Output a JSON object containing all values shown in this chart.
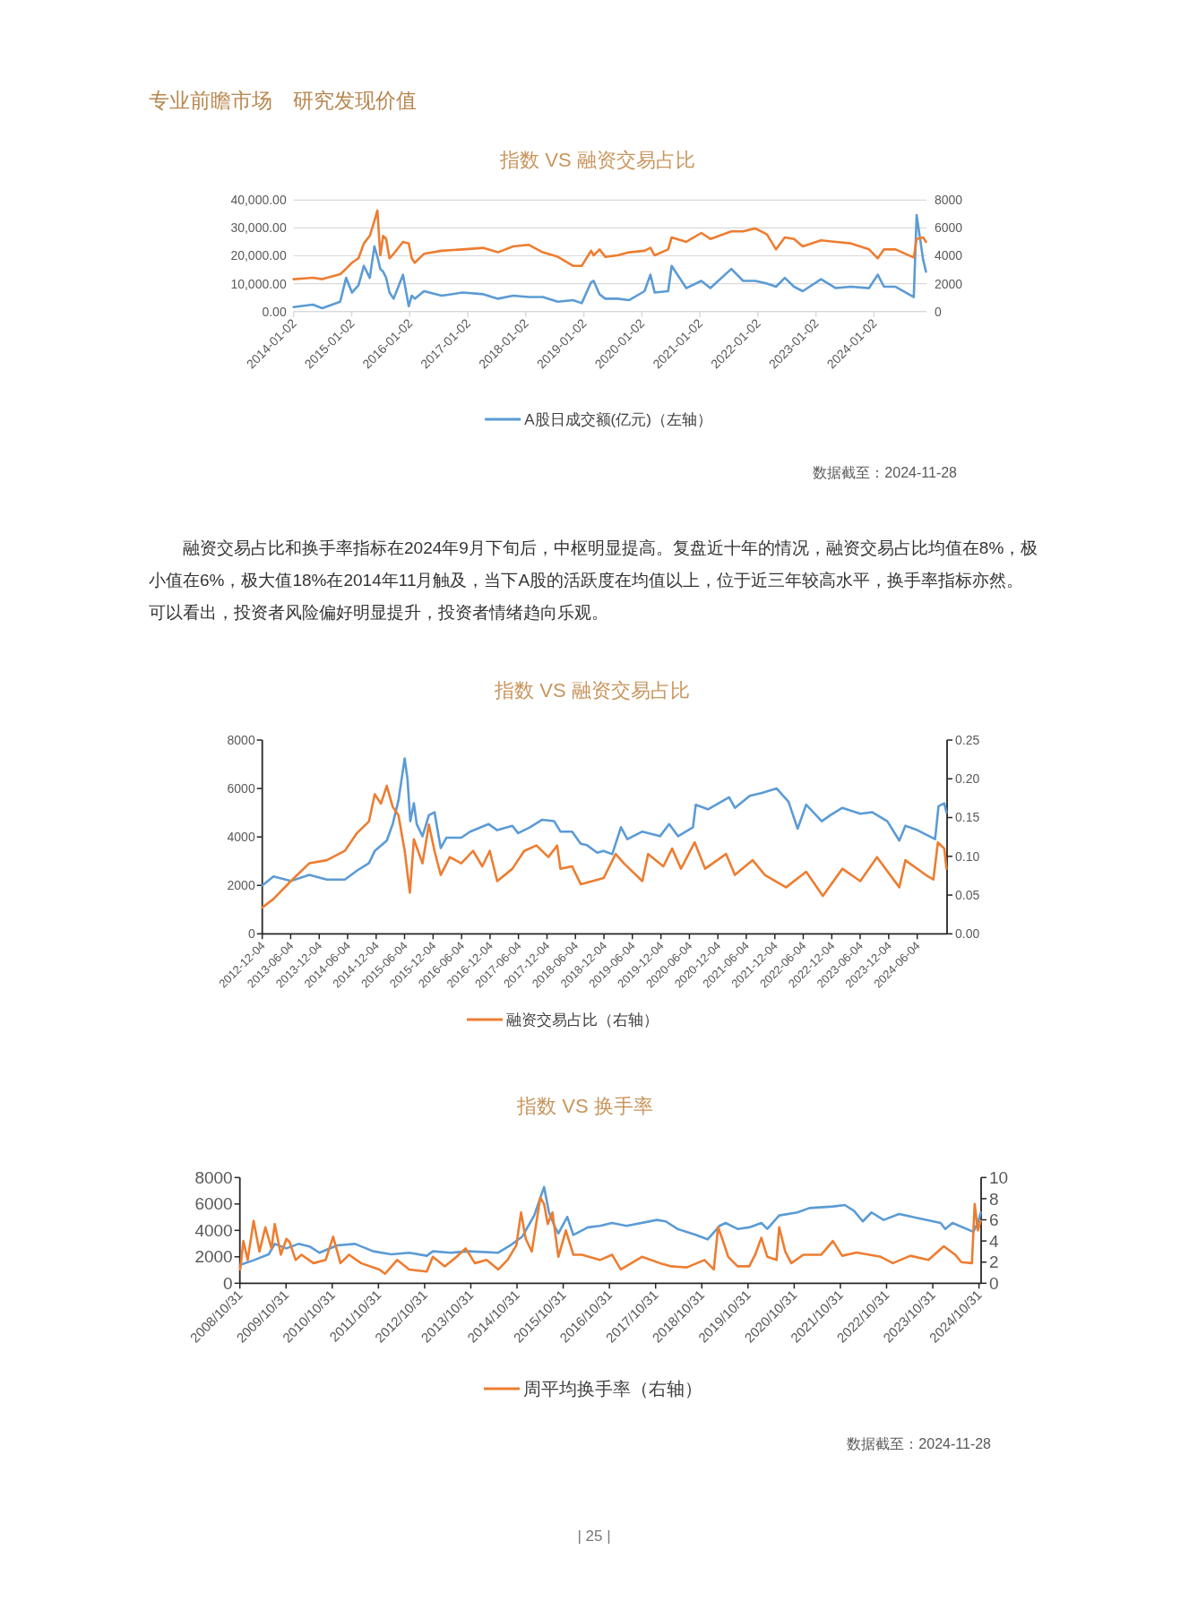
{
  "chart_data": [
    {
      "type": "line",
      "title": "指数 VS 融资交易占比",
      "annotations": [
        "专业前瞻市场　研究发现价值",
        "数据截至：2024-11-28"
      ],
      "x": [
        "2014-01-02",
        "2014-05-03",
        "2014-07-01",
        "2014-10-22",
        "2014-11-28",
        "2015-01-04",
        "2015-02-14",
        "2015-03-20",
        "2015-04-26",
        "2015-05-25",
        "2015-06-13",
        "2015-07-01",
        "2015-07-19",
        "2015-08-07",
        "2015-08-28",
        "2015-09-23",
        "2015-11-21",
        "2015-12-27",
        "2016-01-15",
        "2016-02-03",
        "2016-04-01",
        "2016-07-22",
        "2016-12-02",
        "2017-04-11",
        "2017-07-11",
        "2017-10-15",
        "2018-01-19",
        "2018-04-19",
        "2018-07-22",
        "2018-10-26",
        "2018-12-20",
        "2019-02-17",
        "2019-03-05",
        "2019-04-11",
        "2019-05-17",
        "2019-08-03",
        "2019-10-15",
        "2020-01-19",
        "2020-02-25",
        "2020-03-23",
        "2020-06-16",
        "2020-07-08",
        "2020-10-08",
        "2021-01-11",
        "2021-03-09",
        "2021-07-19",
        "2021-10-01",
        "2021-12-16",
        "2022-02-28",
        "2022-04-26",
        "2022-06-20",
        "2022-08-17",
        "2022-10-11",
        "2023-02-03",
        "2023-05-07",
        "2023-08-10",
        "2023-12-02",
        "2024-01-26",
        "2024-03-05",
        "2024-05-17",
        "2024-09-09",
        "2024-09-27",
        "2024-11-07",
        "2024-11-25"
      ],
      "series": [
        {
          "name": "A股日成交额(亿元)（左轴）",
          "color": "#5b9bd5",
          "values": [
            1600,
            2500,
            1200,
            3500,
            12100,
            6800,
            9400,
            16400,
            12100,
            23400,
            19600,
            15300,
            14300,
            12100,
            6800,
            4600,
            13200,
            1900,
            5700,
            4600,
            7300,
            5700,
            6800,
            6200,
            4600,
            5700,
            5200,
            5200,
            3500,
            4100,
            3000,
            10500,
            11000,
            6200,
            4600,
            4600,
            4100,
            7300,
            13200,
            6800,
            7300,
            16400,
            8400,
            11000,
            8400,
            15300,
            11000,
            11000,
            10000,
            8900,
            12100,
            8900,
            7300,
            11600,
            8400,
            8900,
            8400,
            13200,
            8900,
            8900,
            5200,
            34600,
            18600,
            14300
          ]
        },
        {
          "color": "#ed7d31",
          "axis": "y2",
          "values": [
            2320,
            2420,
            2320,
            2680,
            3070,
            3500,
            3820,
            4890,
            5430,
            6500,
            7250,
            4030,
            5430,
            5210,
            3820,
            4140,
            5000,
            4890,
            3820,
            3500,
            4140,
            4360,
            4460,
            4570,
            4250,
            4680,
            4790,
            4250,
            3930,
            3280,
            3280,
            4360,
            4030,
            4460,
            3930,
            4030,
            4250,
            4360,
            4570,
            4030,
            4460,
            5320,
            5000,
            5640,
            5210,
            5750,
            5750,
            5970,
            5540,
            4460,
            5320,
            5210,
            4680,
            5110,
            5000,
            4890,
            4460,
            3820,
            4460,
            4460,
            3880,
            5210,
            5320,
            5000
          ]
        }
      ],
      "xlim": [
        "2014-01-02",
        "2024-11-28"
      ],
      "xticks": [
        {
          "value": "2014-01-02",
          "label": "2014-01-02"
        },
        {
          "value": "2015-01-02",
          "label": "2015-01-02"
        },
        {
          "value": "2016-01-02",
          "label": "2016-01-02"
        },
        {
          "value": "2017-01-02",
          "label": "2017-01-02"
        },
        {
          "value": "2018-01-02",
          "label": "2018-01-02"
        },
        {
          "value": "2019-01-02",
          "label": "2019-01-02"
        },
        {
          "value": "2020-01-02",
          "label": "2020-01-02"
        },
        {
          "value": "2021-01-02",
          "label": "2021-01-02"
        },
        {
          "value": "2022-01-02",
          "label": "2022-01-02"
        },
        {
          "value": "2023-01-02",
          "label": "2023-01-02"
        },
        {
          "value": "2024-01-02",
          "label": "2024-01-02"
        }
      ],
      "ylim": [
        0,
        40000
      ],
      "yticks": [
        {
          "value": 0,
          "label": "0.00"
        },
        {
          "value": 10000,
          "label": "10,000.00"
        },
        {
          "value": 20000,
          "label": "20,000.00"
        },
        {
          "value": 30000,
          "label": "30,000.00"
        },
        {
          "value": 40000,
          "label": "40,000.00"
        }
      ],
      "y2lim": [
        0,
        8000
      ],
      "y2ticks": [
        0,
        2000,
        4000,
        6000,
        8000
      ],
      "grid": "y",
      "legend": "bottom"
    },
    {
      "type": "line",
      "title": "指数 VS 融资交易占比",
      "annotations": [
        "融资交易占比和换手率指标在2024年9月下旬后，中枢明显提高。复盘近十年的情况，融资交易占比均值在8%，极小值在6%，极大值18%在2014年11月触及，当下A股的活跃度在均值以上，位于近三年较高水平，换手率指标亦然。可以看出，投资者风险偏好明显提升，投资者情绪趋向乐观。"
      ],
      "series": [
        {
          "color": "#5b9bd5",
          "x": [
            "2012-12-05",
            "2013-02-14",
            "2013-06-05",
            "2013-10-01",
            "2014-01-22",
            "2014-05-17",
            "2014-08-03",
            "2014-10-19",
            "2014-11-25",
            "2015-02-10",
            "2015-03-20",
            "2015-04-26",
            "2015-06-05",
            "2015-06-23",
            "2015-07-11",
            "2015-08-03",
            "2015-08-21",
            "2015-09-27",
            "2015-11-07",
            "2015-12-13",
            "2016-01-22",
            "2016-02-28",
            "2016-06-02",
            "2016-07-29",
            "2016-11-25",
            "2017-01-19",
            "2017-04-26",
            "2017-06-02",
            "2017-08-17",
            "2017-11-03",
            "2018-01-19",
            "2018-02-28",
            "2018-05-14",
            "2018-07-08",
            "2018-08-17",
            "2018-10-22",
            "2018-12-02",
            "2019-01-26",
            "2019-03-23",
            "2019-05-03",
            "2019-08-07",
            "2019-11-28",
            "2020-01-26",
            "2020-03-23",
            "2020-06-27",
            "2020-07-15",
            "2020-10-01",
            "2021-02-14",
            "2021-03-23",
            "2021-06-27",
            "2021-09-13",
            "2021-12-16",
            "2022-03-02",
            "2022-04-29",
            "2022-06-23",
            "2022-10-01",
            "2022-11-25",
            "2023-02-10",
            "2023-06-05",
            "2023-08-21",
            "2023-11-25",
            "2024-02-10",
            "2024-03-20",
            "2024-06-05",
            "2024-09-27",
            "2024-10-19",
            "2024-11-25",
            "2024-12-09"
          ],
          "values": [
            2000,
            2370,
            2180,
            2430,
            2240,
            2240,
            2610,
            2920,
            3420,
            3850,
            4530,
            5510,
            7240,
            6380,
            4650,
            5390,
            4530,
            4030,
            4900,
            5020,
            3540,
            3970,
            3970,
            4220,
            4530,
            4280,
            4460,
            4160,
            4400,
            4710,
            4650,
            4220,
            4220,
            3720,
            3660,
            3350,
            3420,
            3290,
            4400,
            3910,
            4220,
            4030,
            4530,
            4030,
            4400,
            5330,
            5140,
            5640,
            5200,
            5700,
            5820,
            6000,
            5450,
            4340,
            5330,
            4650,
            4900,
            5200,
            4960,
            5020,
            4650,
            3850,
            4460,
            4280,
            3910,
            5270,
            5390,
            5020
          ]
        },
        {
          "name": "融资交易占比（右轴）",
          "color": "#ed7d31",
          "axis": "y2",
          "x": [
            "2012-12-05",
            "2013-02-14",
            "2013-06-05",
            "2013-10-01",
            "2014-01-22",
            "2014-05-17",
            "2014-08-03",
            "2014-10-19",
            "2014-11-25",
            "2015-01-04",
            "2015-02-10",
            "2015-03-20",
            "2015-04-26",
            "2015-06-05",
            "2015-07-08",
            "2015-08-03",
            "2015-09-27",
            "2015-11-07",
            "2015-12-13",
            "2016-01-22",
            "2016-03-20",
            "2016-06-02",
            "2016-08-17",
            "2016-10-15",
            "2016-12-02",
            "2017-01-19",
            "2017-04-26",
            "2017-07-11",
            "2017-09-27",
            "2017-12-13",
            "2018-02-07",
            "2018-02-28",
            "2018-05-14",
            "2018-07-08",
            "2018-12-02",
            "2019-02-17",
            "2019-04-11",
            "2019-08-07",
            "2019-09-13",
            "2019-12-20",
            "2020-02-14",
            "2020-04-11",
            "2020-07-08",
            "2020-09-13",
            "2021-01-26",
            "2021-03-23",
            "2021-07-15",
            "2021-10-01",
            "2022-02-14",
            "2022-06-23",
            "2022-10-08",
            "2023-02-10",
            "2023-06-05",
            "2023-09-20",
            "2024-02-10",
            "2024-03-20",
            "2024-07-29",
            "2024-09-16",
            "2024-10-15",
            "2024-11-25",
            "2024-12-09"
          ],
          "values": [
            0.034,
            0.045,
            0.068,
            0.091,
            0.095,
            0.107,
            0.13,
            0.145,
            0.18,
            0.168,
            0.191,
            0.164,
            0.153,
            0.107,
            0.053,
            0.122,
            0.091,
            0.141,
            0.107,
            0.076,
            0.099,
            0.091,
            0.107,
            0.087,
            0.107,
            0.068,
            0.084,
            0.107,
            0.114,
            0.099,
            0.114,
            0.084,
            0.087,
            0.064,
            0.072,
            0.103,
            0.091,
            0.068,
            0.103,
            0.087,
            0.11,
            0.084,
            0.118,
            0.084,
            0.103,
            0.076,
            0.095,
            0.076,
            0.06,
            0.08,
            0.049,
            0.084,
            0.068,
            0.099,
            0.06,
            0.095,
            0.076,
            0.07,
            0.118,
            0.11,
            0.084
          ]
        }
      ],
      "xlim": [
        "2012-12-04",
        "2024-12-13"
      ],
      "xticks": [
        {
          "value": "2012-12-04",
          "label": "2012-12-04"
        },
        {
          "value": "2013-06-04",
          "label": "2013-06-04"
        },
        {
          "value": "2013-12-04",
          "label": "2013-12-04"
        },
        {
          "value": "2014-06-04",
          "label": "2014-06-04"
        },
        {
          "value": "2014-12-04",
          "label": "2014-12-04"
        },
        {
          "value": "2015-06-04",
          "label": "2015-06-04"
        },
        {
          "value": "2015-12-04",
          "label": "2015-12-04"
        },
        {
          "value": "2016-06-04",
          "label": "2016-06-04"
        },
        {
          "value": "2016-12-04",
          "label": "2016-12-04"
        },
        {
          "value": "2017-06-04",
          "label": "2017-06-04"
        },
        {
          "value": "2017-12-04",
          "label": "2017-12-04"
        },
        {
          "value": "2018-06-04",
          "label": "2018-06-04"
        },
        {
          "value": "2018-12-04",
          "label": "2018-12-04"
        },
        {
          "value": "2019-06-04",
          "label": "2019-06-04"
        },
        {
          "value": "2019-12-04",
          "label": "2019-12-04"
        },
        {
          "value": "2020-06-04",
          "label": "2020-06-04"
        },
        {
          "value": "2020-12-04",
          "label": "2020-12-04"
        },
        {
          "value": "2021-06-04",
          "label": "2021-06-04"
        },
        {
          "value": "2021-12-04",
          "label": "2021-12-04"
        },
        {
          "value": "2022-06-04",
          "label": "2022-06-04"
        },
        {
          "value": "2022-12-04",
          "label": "2022-12-04"
        },
        {
          "value": "2023-06-04",
          "label": "2023-06-04"
        },
        {
          "value": "2023-12-04",
          "label": "2023-12-04"
        },
        {
          "value": "2024-06-04",
          "label": "2024-06-04"
        }
      ],
      "ylim": [
        0,
        8000
      ],
      "yticks": [
        0,
        2000,
        4000,
        6000,
        8000
      ],
      "y2lim": [
        0,
        0.25
      ],
      "y2ticks": [
        {
          "value": 0,
          "label": "0.00"
        },
        {
          "value": 0.05,
          "label": "0.05"
        },
        {
          "value": 0.1,
          "label": "0.10"
        },
        {
          "value": 0.15,
          "label": "0.15"
        },
        {
          "value": 0.2,
          "label": "0.20"
        },
        {
          "value": 0.25,
          "label": "0.25"
        }
      ],
      "legend": "bottom"
    },
    {
      "type": "line",
      "title": "指数 VS 换手率",
      "annotations": [
        "数据截至：2024-11-28",
        "|  25  |"
      ],
      "series": [
        {
          "color": "#5b9bd5",
          "x": [
            "2008-11-03",
            "2009-02-17",
            "2009-06-16",
            "2009-08-03",
            "2009-11-03",
            "2010-02-07",
            "2010-05-10",
            "2010-07-22",
            "2010-12-09",
            "2011-04-29",
            "2011-09-20",
            "2012-02-10",
            "2012-07-01",
            "2012-11-17",
            "2013-01-04",
            "2013-05-25",
            "2013-10-15",
            "2014-06-05",
            "2014-09-09",
            "2014-12-13",
            "2015-03-16",
            "2015-06-02",
            "2015-07-11",
            "2015-08-28",
            "2015-09-23",
            "2015-12-02",
            "2016-01-19",
            "2016-05-14",
            "2016-08-17",
            "2016-11-21",
            "2017-03-16",
            "2017-11-10",
            "2018-01-19",
            "2018-04-22",
            "2018-09-13",
            "2018-12-16",
            "2019-03-20",
            "2019-05-07",
            "2019-08-10",
            "2019-11-10",
            "2020-02-14",
            "2020-04-01",
            "2020-07-04",
            "2020-11-25",
            "2021-02-28",
            "2021-09-02",
            "2021-12-05",
            "2022-02-17",
            "2022-04-26",
            "2022-07-04",
            "2022-10-08",
            "2023-02-07",
            "2023-07-19",
            "2024-01-01",
            "2024-02-07",
            "2024-04-04",
            "2024-09-16",
            "2024-10-22",
            "2024-11-14"
          ],
          "values": [
            1400,
            1740,
            2190,
            2980,
            2640,
            2980,
            2760,
            2310,
            2870,
            2980,
            2420,
            2190,
            2310,
            2080,
            2420,
            2310,
            2420,
            2310,
            2870,
            3550,
            5130,
            7280,
            5360,
            4230,
            3770,
            5020,
            3660,
            4230,
            4340,
            4560,
            4340,
            4790,
            4680,
            4110,
            3660,
            3320,
            4340,
            4560,
            4110,
            4230,
            4560,
            4110,
            5130,
            5360,
            5690,
            5810,
            5920,
            5470,
            4680,
            5360,
            4790,
            5240,
            4900,
            4560,
            4110,
            4560,
            3890,
            4560,
            5360
          ]
        },
        {
          "name": "周平均换手率（右轴）",
          "color": "#ed7d31",
          "axis": "y2",
          "x": [
            "2008-11-03",
            "2008-11-28",
            "2009-01-01",
            "2009-02-17",
            "2009-04-04",
            "2009-05-21",
            "2009-07-08",
            "2009-08-03",
            "2009-09-20",
            "2009-11-03",
            "2009-11-28",
            "2010-01-15",
            "2010-03-02",
            "2010-06-05",
            "2010-09-09",
            "2010-11-07",
            "2011-01-04",
            "2011-03-13",
            "2011-06-16",
            "2011-11-07",
            "2011-12-23",
            "2012-03-27",
            "2012-07-01",
            "2012-11-17",
            "2013-01-04",
            "2013-04-08",
            "2013-07-11",
            "2013-09-20",
            "2013-12-02",
            "2014-03-05",
            "2014-06-05",
            "2014-08-17",
            "2014-10-26",
            "2014-12-02",
            "2015-01-08",
            "2015-02-25",
            "2015-05-03",
            "2015-06-02",
            "2015-07-01",
            "2015-08-07",
            "2015-09-23",
            "2015-11-21",
            "2016-01-19",
            "2016-03-27",
            "2016-08-17",
            "2016-11-21",
            "2017-01-29",
            "2017-07-15",
            "2017-12-05",
            "2018-03-05",
            "2018-07-04",
            "2018-11-21",
            "2019-02-03",
            "2019-03-09",
            "2019-04-11",
            "2019-05-28",
            "2019-08-10",
            "2019-11-10",
            "2019-12-27",
            "2020-02-14",
            "2020-04-01",
            "2020-06-13",
            "2020-07-04",
            "2020-08-21",
            "2020-10-08",
            "2021-01-11",
            "2021-06-02",
            "2021-09-02",
            "2021-11-14",
            "2022-03-09",
            "2022-09-16",
            "2022-12-20",
            "2023-05-07",
            "2023-09-27",
            "2024-01-26",
            "2024-04-26",
            "2024-06-13",
            "2024-09-05",
            "2024-09-27",
            "2024-10-22",
            "2024-11-14"
          ],
          "values": [
            1.3,
            4.0,
            2.2,
            5.9,
            3.0,
            5.3,
            3.3,
            5.6,
            2.7,
            4.2,
            3.9,
            2.2,
            2.7,
            1.9,
            2.2,
            4.4,
            1.9,
            2.7,
            1.9,
            1.3,
            0.9,
            2.2,
            1.3,
            1.1,
            2.5,
            1.6,
            2.5,
            3.3,
            1.9,
            2.2,
            1.3,
            2.2,
            3.6,
            6.7,
            4.2,
            3.0,
            8.1,
            7.5,
            5.6,
            6.7,
            2.5,
            5.0,
            2.7,
            2.7,
            2.2,
            2.7,
            1.3,
            2.5,
            1.9,
            1.6,
            1.5,
            2.2,
            1.3,
            5.3,
            4.2,
            2.5,
            1.6,
            1.6,
            2.7,
            4.3,
            2.5,
            2.2,
            5.3,
            3.0,
            1.9,
            2.7,
            2.7,
            4.0,
            2.6,
            2.9,
            2.5,
            1.9,
            2.6,
            2.2,
            3.5,
            2.7,
            2.0,
            1.9,
            7.5,
            5.0,
            5.9
          ]
        }
      ],
      "xlim": [
        "2008-10-31",
        "2024-11-17"
      ],
      "xticks": [
        {
          "value": "2008-10-31",
          "label": "2008/10/31"
        },
        {
          "value": "2009-10-31",
          "label": "2009/10/31"
        },
        {
          "value": "2010-10-31",
          "label": "2010/10/31"
        },
        {
          "value": "2011-10-31",
          "label": "2011/10/31"
        },
        {
          "value": "2012-10-31",
          "label": "2012/10/31"
        },
        {
          "value": "2013-10-31",
          "label": "2013/10/31"
        },
        {
          "value": "2014-10-31",
          "label": "2014/10/31"
        },
        {
          "value": "2015-10-31",
          "label": "2015/10/31"
        },
        {
          "value": "2016-10-31",
          "label": "2016/10/31"
        },
        {
          "value": "2017-10-31",
          "label": "2017/10/31"
        },
        {
          "value": "2018-10-31",
          "label": "2018/10/31"
        },
        {
          "value": "2019-10-31",
          "label": "2019/10/31"
        },
        {
          "value": "2020-10-31",
          "label": "2020/10/31"
        },
        {
          "value": "2021-10-31",
          "label": "2021/10/31"
        },
        {
          "value": "2022-10-31",
          "label": "2022/10/31"
        },
        {
          "value": "2023-10-31",
          "label": "2023/10/31"
        },
        {
          "value": "2024-10-31",
          "label": "2024/10/31"
        }
      ],
      "ylim": [
        0,
        8000
      ],
      "yticks": [
        0,
        2000,
        4000,
        6000,
        8000
      ],
      "y2lim": [
        0,
        10
      ],
      "y2ticks": [
        0,
        2,
        4,
        6,
        8,
        10
      ],
      "legend": "bottom"
    }
  ]
}
